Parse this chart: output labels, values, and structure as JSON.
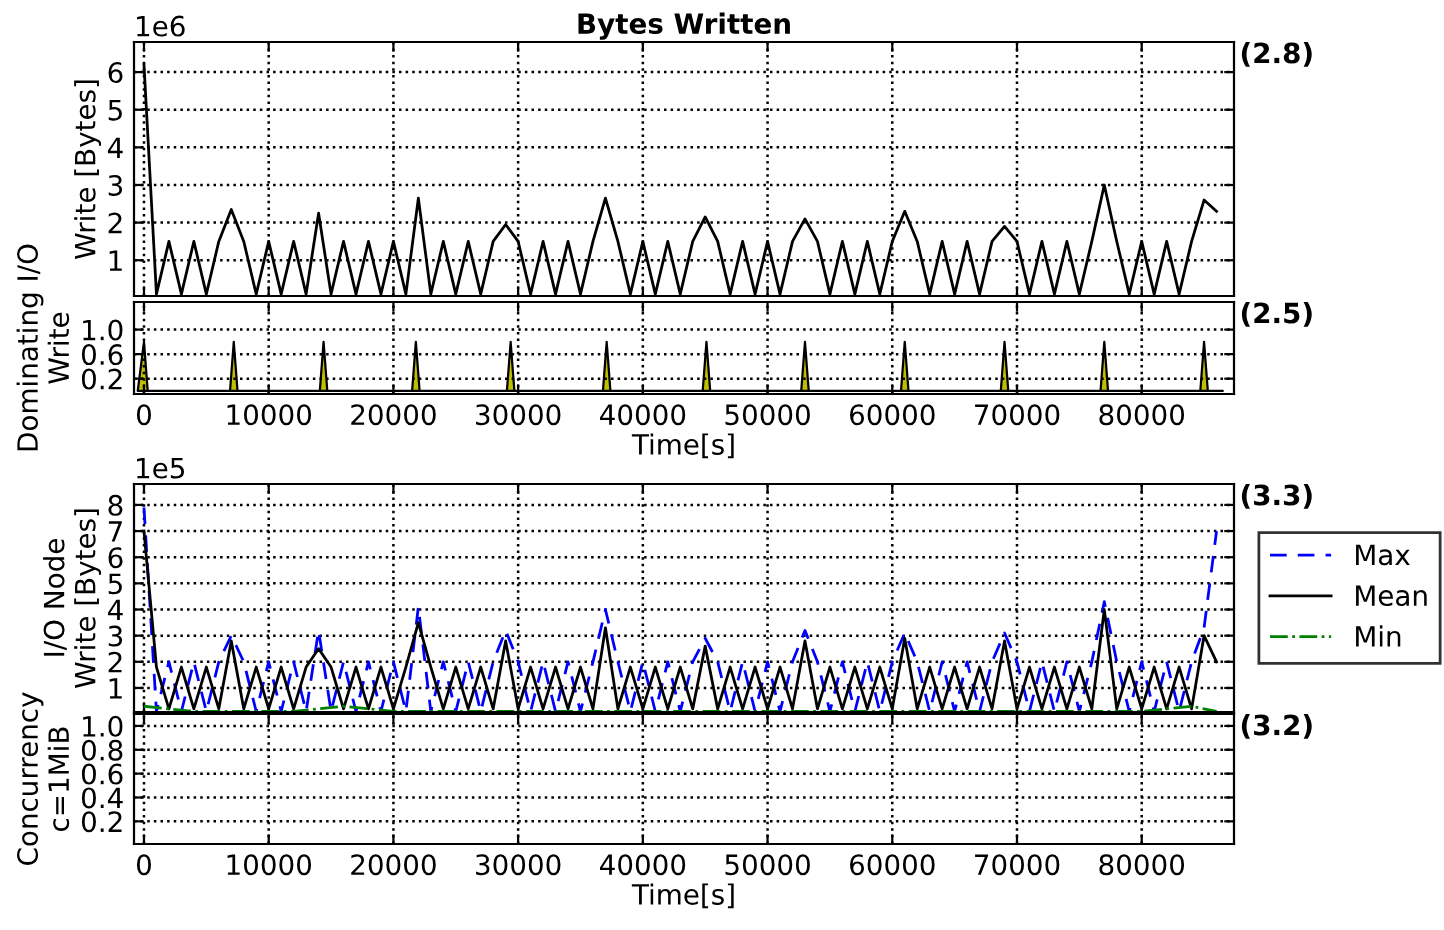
{
  "chart_data": [
    {
      "type": "line",
      "title": "Bytes Written",
      "ylabel": "Write [Bytes]",
      "annotations": [
        "1e6",
        "(2.8)"
      ],
      "grid": true,
      "tick_labels": "y",
      "xlim": [
        -800,
        87400
      ],
      "xticks": [
        0,
        10000,
        20000,
        30000,
        40000,
        50000,
        60000,
        70000,
        80000
      ],
      "ylim": [
        0.05,
        6.8
      ],
      "yticks": [
        1,
        2,
        3,
        4,
        5,
        6
      ],
      "x": [
        0,
        1000,
        2000,
        3000,
        4000,
        5000,
        6000,
        7000,
        8000,
        9000,
        10000,
        11000,
        12000,
        13000,
        14000,
        15000,
        16000,
        17000,
        18000,
        19000,
        20000,
        21000,
        22000,
        23000,
        24000,
        25000,
        26000,
        27000,
        28000,
        29000,
        30000,
        31000,
        32000,
        33000,
        34000,
        35000,
        36000,
        37000,
        38000,
        39000,
        40000,
        41000,
        42000,
        43000,
        44000,
        45000,
        46000,
        47000,
        48000,
        49000,
        50000,
        51000,
        52000,
        53000,
        54000,
        55000,
        56000,
        57000,
        58000,
        59000,
        60000,
        61000,
        62000,
        63000,
        64000,
        65000,
        66000,
        67000,
        68000,
        69000,
        70000,
        71000,
        72000,
        73000,
        74000,
        75000,
        76000,
        77000,
        78000,
        79000,
        80000,
        81000,
        82000,
        83000,
        84000,
        85000,
        86000
      ],
      "series": [
        {
          "color": "#000000",
          "line_style": "solid",
          "values": [
            6.2,
            0.1,
            1.5,
            0.1,
            1.5,
            0.1,
            1.5,
            2.35,
            1.5,
            0.1,
            1.5,
            0.1,
            1.5,
            0.1,
            2.25,
            0.1,
            1.5,
            0.1,
            1.5,
            0.1,
            1.5,
            0.1,
            2.65,
            0.1,
            1.5,
            0.1,
            1.5,
            0.1,
            1.5,
            1.95,
            1.5,
            0.1,
            1.5,
            0.1,
            1.5,
            0.1,
            1.5,
            2.65,
            1.5,
            0.1,
            1.5,
            0.1,
            1.5,
            0.1,
            1.5,
            2.15,
            1.5,
            0.1,
            1.5,
            0.1,
            1.5,
            0.1,
            1.5,
            2.1,
            1.5,
            0.1,
            1.5,
            0.1,
            1.5,
            0.1,
            1.5,
            2.3,
            1.5,
            0.1,
            1.5,
            0.1,
            1.5,
            0.1,
            1.5,
            1.9,
            1.5,
            0.1,
            1.5,
            0.1,
            1.5,
            0.1,
            1.5,
            3.0,
            1.5,
            0.1,
            1.5,
            0.1,
            1.5,
            0.1,
            1.5,
            2.6,
            2.3
          ]
        }
      ]
    },
    {
      "type": "area",
      "ylabel": "Dominating I/O\nWrite",
      "xlabel": "Time[s]",
      "annotations": [
        "(2.5)"
      ],
      "grid": true,
      "xlim": [
        -800,
        87400
      ],
      "xticks": [
        0,
        10000,
        20000,
        30000,
        40000,
        50000,
        60000,
        70000,
        80000
      ],
      "ylim": [
        -0.05,
        1.45
      ],
      "yticks": [
        0.2,
        0.6,
        {
          "value": 1,
          "label": "1.0"
        }
      ],
      "x": [
        -500,
        0,
        300,
        6900,
        7200,
        7500,
        14100,
        14400,
        14700,
        21500,
        21800,
        22100,
        29100,
        29400,
        29700,
        36800,
        37100,
        37400,
        44800,
        45100,
        45400,
        52700,
        53000,
        53300,
        60700,
        61000,
        61300,
        68700,
        69000,
        69300,
        76700,
        77000,
        77300,
        84700,
        85000,
        85300,
        86500
      ],
      "series": [
        {
          "color": "#bfbf00",
          "values": [
            0,
            0.8,
            0,
            0,
            0.8,
            0,
            0,
            0.8,
            0,
            0,
            0.8,
            0,
            0,
            0.8,
            0,
            0,
            0.8,
            0,
            0,
            0.8,
            0,
            0,
            0.8,
            0,
            0,
            0.8,
            0,
            0,
            0.8,
            0,
            0,
            0.8,
            0,
            0,
            0.8,
            0,
            0
          ]
        }
      ]
    },
    {
      "type": "line",
      "ylabel": "I/O Node\nWrite [Bytes]",
      "annotations": [
        "1e5",
        "(3.3)"
      ],
      "grid": true,
      "tick_labels": "y",
      "legend": "right",
      "xlim": [
        -800,
        87400
      ],
      "xticks": [
        0,
        10000,
        20000,
        30000,
        40000,
        50000,
        60000,
        70000,
        80000
      ],
      "ylim": [
        0.08,
        8.8
      ],
      "yticks": [
        1,
        2,
        3,
        4,
        5,
        6,
        7,
        8
      ],
      "x": [
        0,
        1000,
        2000,
        3000,
        4000,
        5000,
        6000,
        7000,
        8000,
        9000,
        10000,
        11000,
        12000,
        13000,
        14000,
        15000,
        16000,
        17000,
        18000,
        19000,
        20000,
        21000,
        22000,
        23000,
        24000,
        25000,
        26000,
        27000,
        28000,
        29000,
        30000,
        31000,
        32000,
        33000,
        34000,
        35000,
        36000,
        37000,
        38000,
        39000,
        40000,
        41000,
        42000,
        43000,
        44000,
        45000,
        46000,
        47000,
        48000,
        49000,
        50000,
        51000,
        52000,
        53000,
        54000,
        55000,
        56000,
        57000,
        58000,
        59000,
        60000,
        61000,
        62000,
        63000,
        64000,
        65000,
        66000,
        67000,
        68000,
        69000,
        70000,
        71000,
        72000,
        73000,
        74000,
        75000,
        76000,
        77000,
        78000,
        79000,
        80000,
        81000,
        82000,
        83000,
        84000,
        85000,
        86000
      ],
      "series": [
        {
          "name": "Max",
          "color": "#0000ff",
          "line_style": "dashed",
          "values": [
            7.9,
            0.1,
            2,
            0.1,
            2,
            0.1,
            2,
            3.0,
            2,
            0.1,
            2,
            0.1,
            2,
            0.1,
            3.2,
            0.1,
            2,
            0.1,
            2,
            0.1,
            2,
            0.1,
            4.1,
            0.1,
            2,
            0.1,
            2,
            0.1,
            2,
            3.2,
            2,
            0.1,
            2,
            0.1,
            2,
            0.1,
            2,
            4.0,
            2,
            0.1,
            2,
            0.1,
            2,
            0.1,
            2,
            2.9,
            2,
            0.1,
            2,
            0.1,
            2,
            0.1,
            2,
            3.2,
            2,
            0.1,
            2,
            0.1,
            2,
            0.1,
            2,
            3.1,
            2,
            0.1,
            2,
            0.1,
            2,
            0.1,
            2,
            3.1,
            2,
            0.1,
            2,
            0.1,
            2,
            0.1,
            2,
            4.3,
            2,
            0.1,
            2,
            0.1,
            2,
            0.1,
            2,
            3.3,
            7.0
          ]
        },
        {
          "name": "Mean",
          "color": "#000000",
          "line_style": "solid",
          "values": [
            7.0,
            1.8,
            0.2,
            1.8,
            0.2,
            1.8,
            0.2,
            2.8,
            0.2,
            1.8,
            0.2,
            1.8,
            0.2,
            1.8,
            2.5,
            1.8,
            0.2,
            1.8,
            0.2,
            1.8,
            0.2,
            1.8,
            3.5,
            1.8,
            0.2,
            1.8,
            0.2,
            1.8,
            0.2,
            2.8,
            0.2,
            1.8,
            0.2,
            1.8,
            0.2,
            1.8,
            0.2,
            3.3,
            0.2,
            1.8,
            0.2,
            1.8,
            0.2,
            1.8,
            0.2,
            2.6,
            0.2,
            1.8,
            0.2,
            1.8,
            0.2,
            1.8,
            0.2,
            2.8,
            0.2,
            1.8,
            0.2,
            1.8,
            0.2,
            1.8,
            0.2,
            2.9,
            0.2,
            1.8,
            0.2,
            1.8,
            0.2,
            1.8,
            0.2,
            2.8,
            0.2,
            1.8,
            0.2,
            1.8,
            0.2,
            1.8,
            0.2,
            4.0,
            0.2,
            1.8,
            0.2,
            1.8,
            0.2,
            1.8,
            0.2,
            3.0,
            2.0
          ]
        },
        {
          "name": "Min",
          "color": "#008000",
          "line_style": "dashdot",
          "x": [
            0,
            4000,
            8000,
            12000,
            16000,
            20000,
            24000,
            28000,
            32000,
            36000,
            40000,
            44000,
            48000,
            52000,
            56000,
            60000,
            64000,
            68000,
            72000,
            76000,
            80000,
            84000,
            86000
          ],
          "values": [
            0.3,
            0.1,
            0.1,
            0.1,
            0.3,
            0.1,
            0.1,
            0.1,
            0.1,
            0.1,
            0.1,
            0.1,
            0.1,
            0.1,
            0.1,
            0.1,
            0.1,
            0.1,
            0.1,
            0.1,
            0.1,
            0.3,
            0.1
          ]
        }
      ]
    },
    {
      "type": "line",
      "ylabel": "Concurrency\nc=1MiB",
      "xlabel": "Time[s]",
      "annotations": [
        "(3.2)"
      ],
      "grid": true,
      "xlim": [
        -800,
        87400
      ],
      "xticks": [
        0,
        10000,
        20000,
        30000,
        40000,
        50000,
        60000,
        70000,
        80000
      ],
      "ylim": [
        0.01,
        1.1
      ],
      "yticks": [
        0.2,
        0.4,
        0.6,
        0.8,
        {
          "value": 1,
          "label": "1.0"
        }
      ]
    }
  ]
}
